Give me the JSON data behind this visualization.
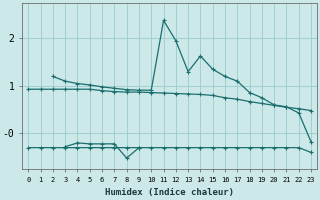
{
  "xlabel": "Humidex (Indice chaleur)",
  "bg_color": "#cce8e8",
  "grid_color": "#99cccc",
  "line_color": "#1a6e6e",
  "x_ticks": [
    0,
    1,
    2,
    3,
    4,
    5,
    6,
    7,
    8,
    9,
    10,
    11,
    12,
    13,
    14,
    15,
    16,
    17,
    18,
    19,
    20,
    21,
    22,
    23
  ],
  "y_ticks": [
    0,
    1,
    2
  ],
  "y_tick_labels": [
    "-0",
    "1",
    "2"
  ],
  "xlim": [
    -0.5,
    23.5
  ],
  "ylim": [
    -0.75,
    2.75
  ],
  "line1_x": [
    0,
    1,
    2,
    3,
    4,
    5,
    6,
    7,
    8,
    9,
    10,
    11,
    12,
    13,
    14,
    15,
    16,
    17,
    18,
    19,
    20,
    21,
    22,
    23
  ],
  "line1_y": [
    0.93,
    0.93,
    0.93,
    0.93,
    0.93,
    0.93,
    0.9,
    0.88,
    0.87,
    0.87,
    0.86,
    0.85,
    0.84,
    0.83,
    0.82,
    0.8,
    0.75,
    0.72,
    0.67,
    0.63,
    0.59,
    0.55,
    0.52,
    0.48
  ],
  "line2_x": [
    2,
    3,
    4,
    5,
    6,
    7,
    8,
    9,
    10,
    11,
    12,
    13,
    14,
    15,
    16,
    17,
    18,
    19,
    20,
    21,
    22,
    23
  ],
  "line2_y": [
    1.2,
    1.1,
    1.05,
    1.02,
    0.98,
    0.95,
    0.92,
    0.91,
    0.91,
    2.38,
    1.95,
    1.3,
    1.63,
    1.35,
    1.2,
    1.1,
    0.86,
    0.75,
    0.6,
    0.56,
    0.43,
    -0.18
  ],
  "line3_x": [
    0,
    1,
    2,
    3,
    4,
    5,
    6,
    7,
    8,
    9,
    10,
    11,
    12,
    13,
    14,
    15,
    16,
    17,
    18,
    19,
    20,
    21,
    22,
    23
  ],
  "line3_y": [
    -0.3,
    -0.3,
    -0.3,
    -0.3,
    -0.3,
    -0.3,
    -0.3,
    -0.3,
    -0.3,
    -0.3,
    -0.3,
    -0.3,
    -0.3,
    -0.3,
    -0.3,
    -0.3,
    -0.3,
    -0.3,
    -0.3,
    -0.3,
    -0.3,
    -0.3,
    -0.3,
    -0.4
  ],
  "line4_x": [
    3,
    4,
    5,
    6,
    7,
    8,
    9
  ],
  "line4_y": [
    -0.28,
    -0.2,
    -0.22,
    -0.22,
    -0.22,
    -0.52,
    -0.3
  ]
}
